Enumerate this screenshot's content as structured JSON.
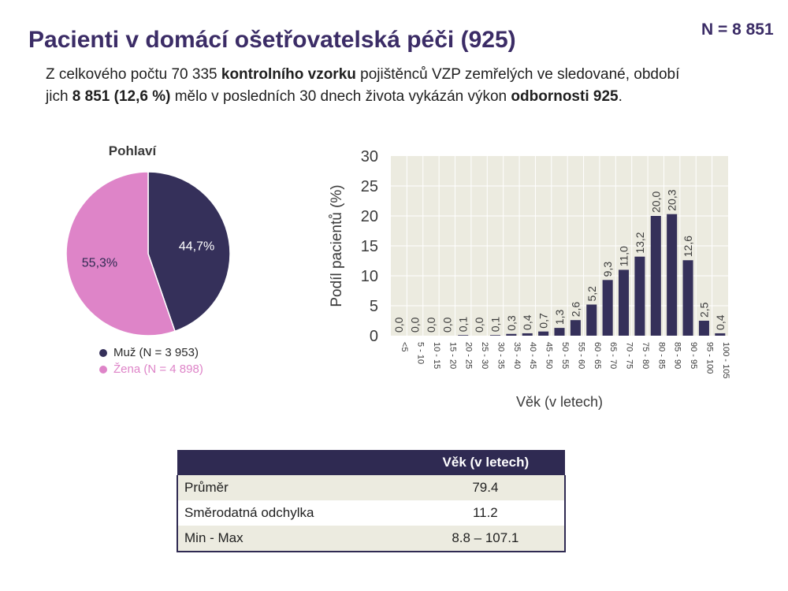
{
  "header": {
    "title": "Pacienti v domácí ošetřovatelská péči (925)",
    "n_total": "N = 8 851"
  },
  "intro": {
    "line1_a": "Z celkového počtu 70 335 ",
    "line1_b": "kontrolního vzorku",
    "line1_c": " pojištěnců VZP zemřelých ve sledované, období",
    "line2_a": "jich ",
    "line2_b": " 8 851 (12,6 %)",
    "line2_c": " mělo v posledních 30 dnech života vykázán výkon ",
    "line2_d": "odbornosti 925",
    "line2_e": "."
  },
  "colors": {
    "navy": "#35305a",
    "pink": "#de84c8",
    "plot_bg": "#ecebe0",
    "title": "#3b2c66"
  },
  "chart_data": [
    {
      "type": "pie",
      "title": "Pohlaví",
      "slices": [
        {
          "label": "Muž (N = 3 953)",
          "value": 44.7,
          "display": "44,7%",
          "color": "#35305a"
        },
        {
          "label": "Žena (N = 4 898)",
          "value": 55.3,
          "display": "55,3%",
          "color": "#de84c8"
        }
      ],
      "legend_position": "bottom"
    },
    {
      "type": "bar",
      "xlabel": "Věk (v letech)",
      "ylabel": "Podíl pacientů (%)",
      "ylim": [
        0,
        30
      ],
      "yticks": [
        0,
        5,
        10,
        15,
        20,
        25,
        30
      ],
      "grid": true,
      "categories": [
        "<5",
        "5 - 10",
        "10 - 15",
        "15 - 20",
        "20 - 25",
        "25 - 30",
        "30 - 35",
        "35 - 40",
        "40 - 45",
        "45 - 50",
        "50 - 55",
        "55 - 60",
        "60 - 65",
        "65 - 70",
        "70 - 75",
        "75 - 80",
        "80 - 85",
        "85 - 90",
        "90 - 95",
        "95 - 100",
        "100 - 105"
      ],
      "values": [
        0.0,
        0.0,
        0.0,
        0.0,
        0.1,
        0.0,
        0.1,
        0.3,
        0.4,
        0.7,
        1.3,
        2.6,
        5.2,
        9.3,
        11.0,
        13.2,
        20.0,
        20.3,
        12.6,
        2.5,
        0.4
      ],
      "labels": [
        "0,0",
        "0,0",
        "0,0",
        "0,0",
        "0,1",
        "0,0",
        "0,1",
        "0,3",
        "0,4",
        "0,7",
        "1,3",
        "2,6",
        "5,2",
        "9,3",
        "11,0",
        "13,2",
        "20,0",
        "20,3",
        "12,6",
        "2,5",
        "0,4"
      ]
    }
  ],
  "stats_table": {
    "header": [
      "",
      "Věk (v letech)"
    ],
    "rows": [
      {
        "label": "Průměr",
        "value": "79.4"
      },
      {
        "label": "Směrodatná odchylka",
        "value": "11.2"
      },
      {
        "label": "Min - Max",
        "value": "8.8 – 107.1"
      }
    ]
  }
}
